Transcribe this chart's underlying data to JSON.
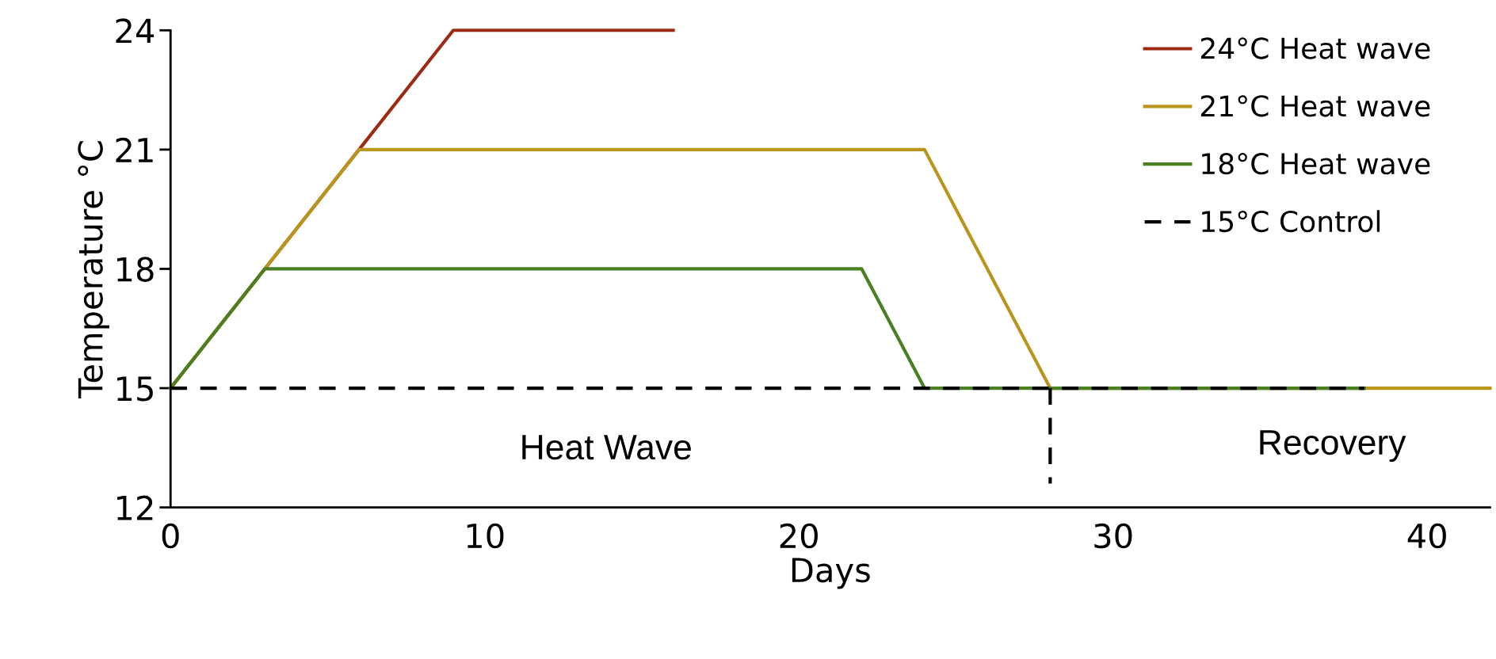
{
  "chart_data": {
    "type": "line",
    "xlabel": "Days",
    "ylabel": "Temperature °C",
    "xlim": [
      0,
      42
    ],
    "ylim": [
      12,
      24
    ],
    "xticks": [
      0,
      10,
      20,
      30,
      40
    ],
    "yticks": [
      12,
      15,
      18,
      21,
      24
    ],
    "legend": "top right",
    "grid": false,
    "marker": "none",
    "series": [
      {
        "name": "24°C Heat wave",
        "color": "#9c2a14",
        "line_style": "solid",
        "x": [
          0,
          3,
          6,
          9,
          16
        ],
        "values": [
          15,
          18,
          21,
          24,
          24
        ]
      },
      {
        "name": "21°C Heat wave",
        "color": "#b8961e",
        "line_style": "solid",
        "x": [
          0,
          6,
          24,
          28,
          42
        ],
        "values": [
          15,
          21,
          21,
          15,
          15
        ]
      },
      {
        "name": "18°C Heat wave",
        "color": "#4a7f22",
        "line_style": "solid",
        "x": [
          0,
          3,
          22,
          24,
          38
        ],
        "values": [
          15,
          18,
          18,
          15,
          15
        ]
      },
      {
        "name": "15°C Control",
        "color": "#000000",
        "line_style": "dashed",
        "x": [
          0,
          38
        ],
        "values": [
          15,
          15
        ]
      },
      {
        "color": "#000000",
        "line_style": "dashed",
        "x": [
          28,
          28
        ],
        "values": [
          15,
          12.6
        ]
      }
    ],
    "annotations": [
      "Heat Wave",
      "Recovery"
    ]
  }
}
